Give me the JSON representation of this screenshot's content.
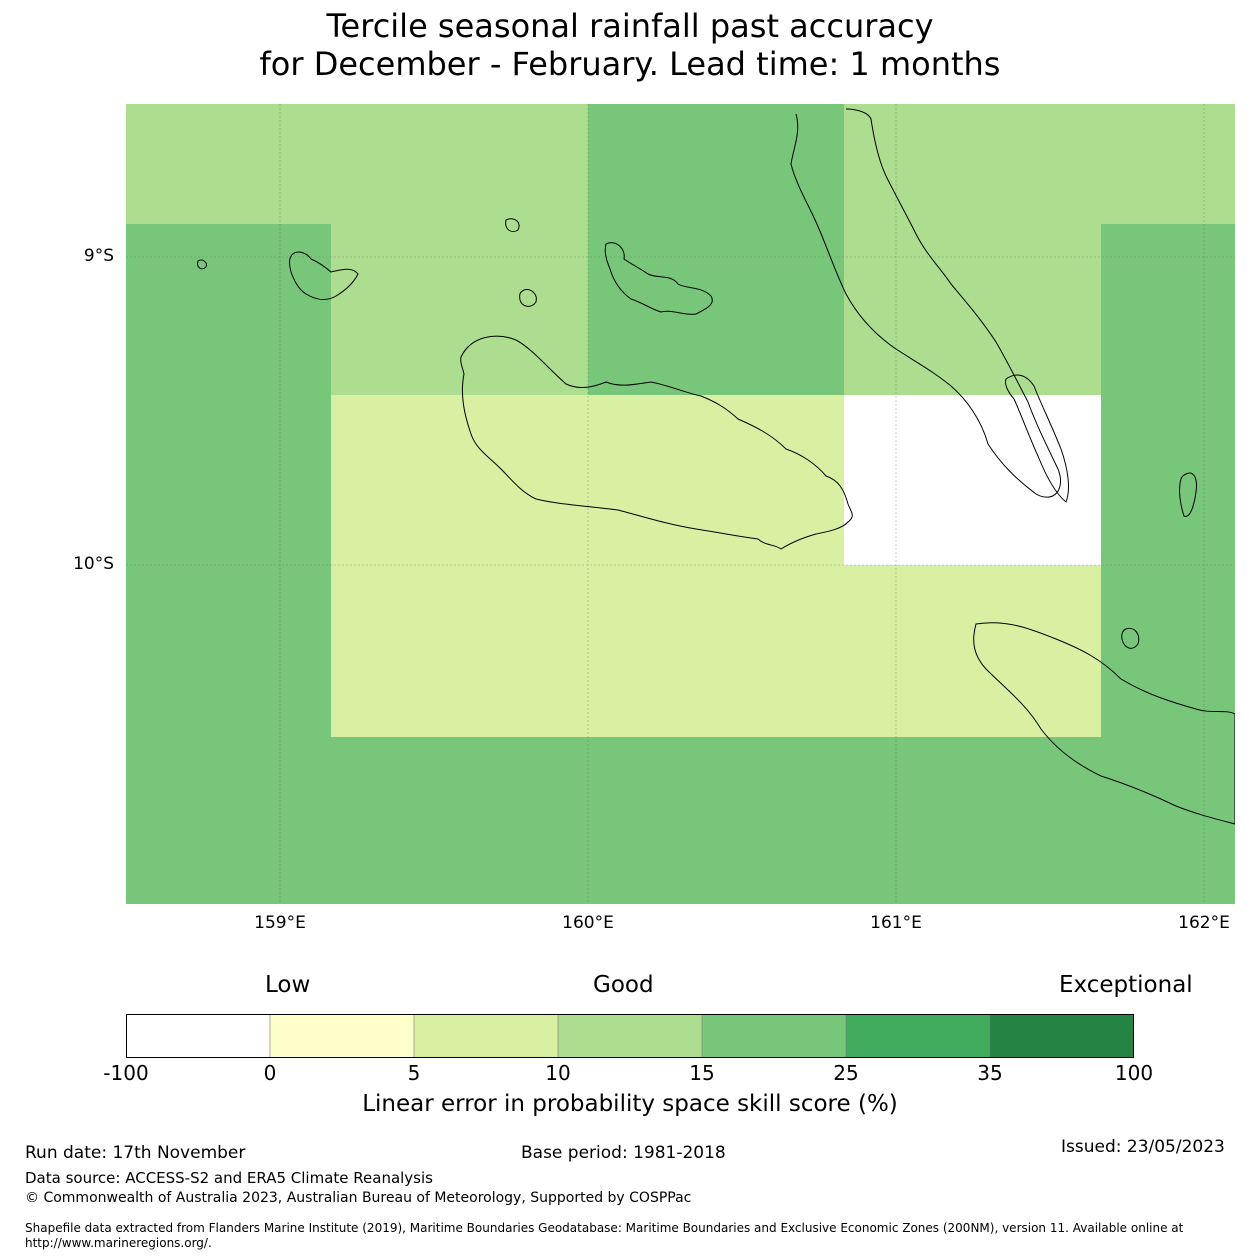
{
  "title": {
    "line1": "Tercile seasonal rainfall past accuracy",
    "line2": "for December - February. Lead time: 1 months"
  },
  "map": {
    "lat_labels": [
      "9°S",
      "10°S"
    ],
    "lon_labels": [
      "159°E",
      "160°E",
      "161°E",
      "162°E"
    ],
    "regions": [
      {
        "name": "upper-band",
        "category": "10-15"
      },
      {
        "name": "center-top-column",
        "category": "15-25"
      },
      {
        "name": "left-column",
        "category": "15-25"
      },
      {
        "name": "right-column",
        "category": "15-25"
      },
      {
        "name": "bottom-band",
        "category": "15-25"
      },
      {
        "name": "center-block",
        "category": "5-10"
      },
      {
        "name": "east-block",
        "category": "-100-0"
      }
    ]
  },
  "colorbar": {
    "categories": [
      "Low",
      "Good",
      "Exceptional"
    ],
    "ticks": [
      "-100",
      "0",
      "5",
      "10",
      "15",
      "25",
      "35",
      "100"
    ],
    "colors": [
      "#ffffff",
      "#ffffcc",
      "#d9f0a3",
      "#addd8e",
      "#78c679",
      "#41ab5d",
      "#238443"
    ],
    "label": "Linear error in probability space skill score (%)"
  },
  "footer": {
    "run_date": "Run date: 17th November",
    "base_period": "Base period: 1981-2018",
    "issued": "Issued: 23/05/2023",
    "data_source": "Data source: ACCESS-S2 and ERA5 Climate Reanalysis",
    "copyright": "© Commonwealth of Australia 2023, Australian Bureau of Meteorology, Supported by COSPPac",
    "shapefile_line1": "Shapefile data extracted from Flanders Marine Institute (2019), Maritime Boundaries Geodatabase: Maritime Boundaries and Exclusive Economic Zones (200NM), version 11. Available online at",
    "shapefile_line2": "http://www.marineregions.org/."
  }
}
